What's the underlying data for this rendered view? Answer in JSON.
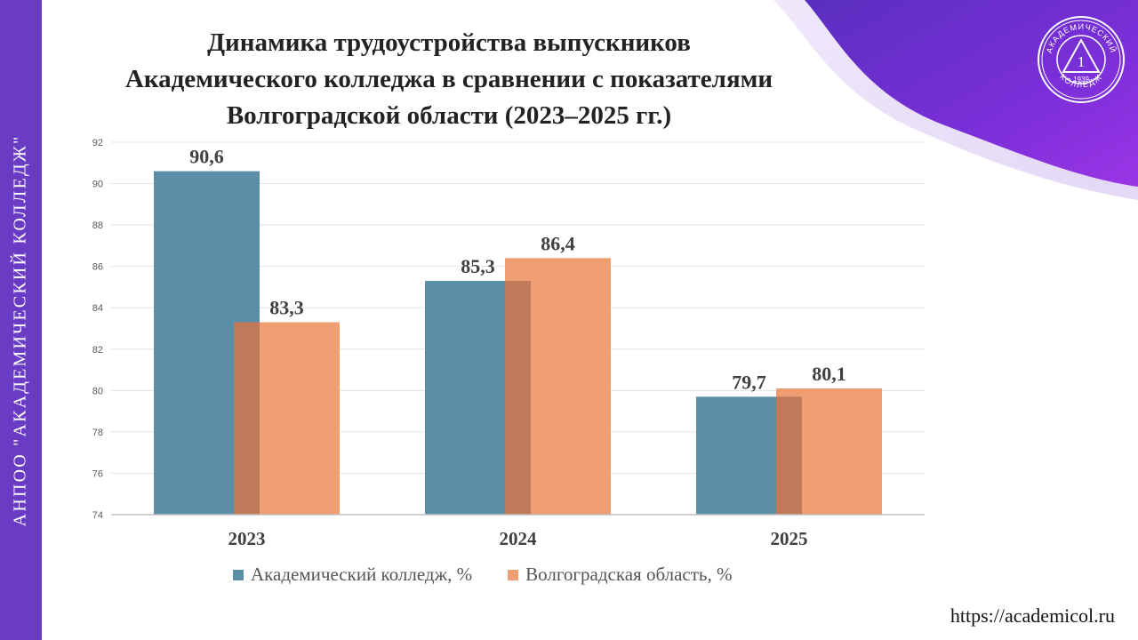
{
  "sidebar": {
    "text": "АНПОО \"АКАДЕМИЧЕСКИЙ КОЛЛЕДЖ\"",
    "color": "#6a3cc4"
  },
  "title_lines": [
    "Динамика трудоустройства  выпускников",
    "Академического колледжа в сравнении  с показателями",
    "Волгоградской области (2023–2025 гг.)"
  ],
  "logo": {
    "top_text": "АКАДЕМИЧЕСКИЙ",
    "bottom_text": "КОЛЛЕДЖ",
    "number": "1",
    "year": "1939"
  },
  "url": "https://academicol.ru",
  "colors": {
    "series1": "#5b8fa8",
    "series2": "#ee9e72",
    "overlap": "#c07a5a",
    "accent": "#6a3cc4"
  },
  "chart_data": {
    "type": "bar",
    "categories": [
      "2023",
      "2024",
      "2025"
    ],
    "series": [
      {
        "name": "Академический колледж, %",
        "values": [
          90.6,
          85.3,
          79.7
        ],
        "labels": [
          "90,6",
          "85,3",
          "79,7"
        ]
      },
      {
        "name": "Волгоградская область, %",
        "values": [
          83.3,
          86.4,
          80.1
        ],
        "labels": [
          "83,3",
          "86,4",
          "80,1"
        ]
      }
    ],
    "ylim": [
      74,
      92
    ],
    "yticks": [
      74,
      76,
      78,
      80,
      82,
      84,
      86,
      88,
      90,
      92
    ],
    "grid": true,
    "legend": "bottom"
  }
}
